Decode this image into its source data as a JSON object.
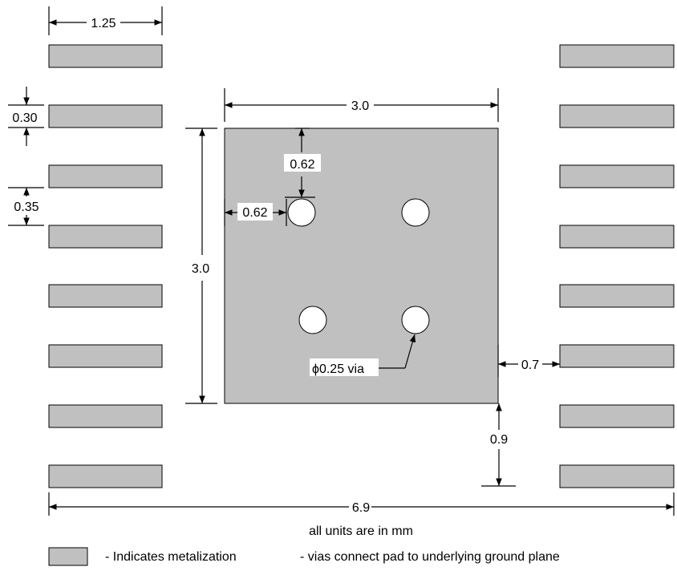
{
  "pad_color": "#c0c0c0",
  "dimensions": {
    "pad_length": "1.25",
    "pad_width": "0.30",
    "pad_gap": "0.35",
    "center_pad_width": "3.0",
    "center_pad_height": "3.0",
    "via_offset_y": "0.62",
    "via_offset_x": "0.62",
    "pad_to_center_gap": "0.7",
    "bottom_offset": "0.9",
    "overall_width": "6.9"
  },
  "via_label": "ϕ0.25 via",
  "units_note": "all units are in mm",
  "legend": {
    "metalization": "- Indicates metalization",
    "vias": "- vias connect pad to underlying ground plane"
  }
}
